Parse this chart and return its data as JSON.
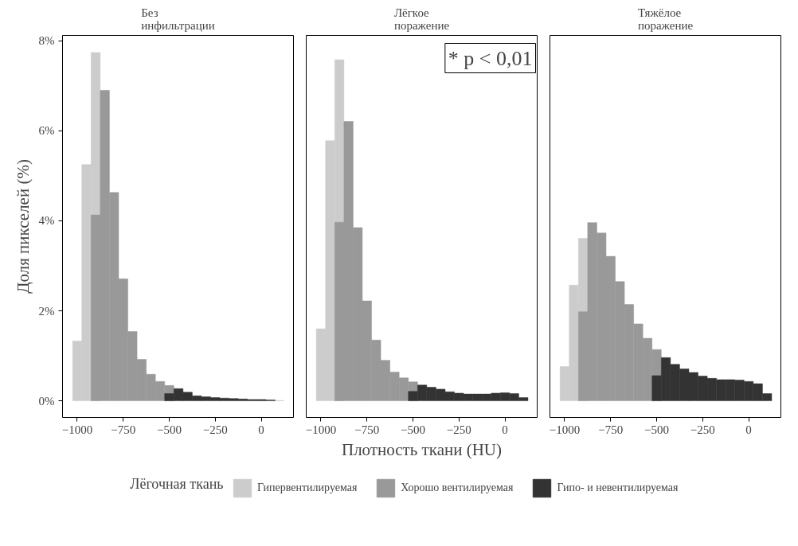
{
  "chart_data": [
    {
      "type": "histogram",
      "title": "Без\nинфильтрации",
      "ylabel": "Доля пикселей (%)",
      "bins": [
        -1025,
        -975,
        -925,
        -875,
        -825,
        -775,
        -725,
        -675,
        -625,
        -575,
        -525,
        -475,
        -425,
        -375,
        -325,
        -275,
        -225,
        -175,
        -125,
        -75,
        -25,
        25,
        75,
        125
      ],
      "xlim": [
        -1080,
        175
      ],
      "ylim": [
        -0.37,
        8.12
      ],
      "xticks": [
        -1000,
        -750,
        -500,
        -250,
        0
      ],
      "yticks": [
        {
          "value": 0,
          "label": "0%"
        },
        {
          "value": 2,
          "label": "2%"
        },
        {
          "value": 4,
          "label": "4%"
        },
        {
          "value": 6,
          "label": "6%"
        },
        {
          "value": 8,
          "label": "8%"
        }
      ],
      "series": [
        {
          "color": "#cccccc",
          "values": [
            1.33,
            5.25,
            7.74,
            null,
            null,
            null,
            null,
            null,
            null,
            null,
            null,
            null,
            null,
            null,
            null,
            null,
            null,
            null,
            null,
            null,
            null,
            null,
            0.01
          ]
        },
        {
          "color": "#999999",
          "values": [
            null,
            null,
            4.13,
            6.9,
            4.63,
            2.71,
            1.54,
            0.92,
            0.59,
            0.43,
            0.34,
            null,
            null,
            null,
            null,
            null,
            null,
            null,
            null,
            null,
            null,
            null,
            null
          ]
        },
        {
          "color": "#333333",
          "values": [
            null,
            null,
            null,
            null,
            null,
            null,
            null,
            null,
            null,
            null,
            0.16,
            0.27,
            0.19,
            0.11,
            0.09,
            0.07,
            0.06,
            0.05,
            0.04,
            0.03,
            0.03,
            0.02,
            null
          ]
        }
      ]
    },
    {
      "type": "histogram",
      "title": "Лёгкое\nпоражение",
      "xlabel": "Плотность ткани (HU)",
      "tick_labels": "x",
      "legend": "bottom",
      "legend_title": "Лёгочная ткань",
      "annotations": [
        "* p < 0,01"
      ],
      "bins": [
        -1025,
        -975,
        -925,
        -875,
        -825,
        -775,
        -725,
        -675,
        -625,
        -575,
        -525,
        -475,
        -425,
        -375,
        -325,
        -275,
        -225,
        -175,
        -125,
        -75,
        -25,
        25,
        75,
        125
      ],
      "xlim": [
        -1080,
        175
      ],
      "ylim": [
        -0.37,
        8.12
      ],
      "xticks": [
        -1000,
        -750,
        -500,
        -250,
        0
      ],
      "series": [
        {
          "name": "Гипервентилируемая",
          "color": "#cccccc",
          "values": [
            1.6,
            5.78,
            7.58,
            null,
            null,
            null,
            null,
            null,
            null,
            null,
            null,
            null,
            null,
            null,
            null,
            null,
            null,
            null,
            null,
            null,
            null,
            null,
            null
          ]
        },
        {
          "name": "Хорошо вентилируемая",
          "color": "#999999",
          "values": [
            null,
            null,
            3.97,
            6.21,
            3.85,
            2.22,
            1.35,
            0.9,
            0.64,
            0.51,
            0.42,
            null,
            null,
            null,
            null,
            null,
            null,
            null,
            null,
            null,
            null,
            null,
            null
          ]
        },
        {
          "name": "Гипо- и невентилируемая",
          "color": "#333333",
          "values": [
            null,
            null,
            null,
            null,
            null,
            null,
            null,
            null,
            null,
            null,
            0.21,
            0.35,
            0.3,
            0.26,
            0.2,
            0.17,
            0.15,
            0.15,
            0.15,
            0.17,
            0.18,
            0.16,
            0.07
          ]
        }
      ]
    },
    {
      "type": "histogram",
      "title": "Тяжёлое\nпоражение",
      "tick_labels": "x",
      "bins": [
        -1025,
        -975,
        -925,
        -875,
        -825,
        -775,
        -725,
        -675,
        -625,
        -575,
        -525,
        -475,
        -425,
        -375,
        -325,
        -275,
        -225,
        -175,
        -125,
        -75,
        -25,
        25,
        75,
        125
      ],
      "xlim": [
        -1080,
        175
      ],
      "ylim": [
        -0.37,
        8.12
      ],
      "xticks": [
        -1000,
        -750,
        -500,
        -250,
        0
      ],
      "series": [
        {
          "color": "#cccccc",
          "values": [
            0.76,
            2.57,
            3.61,
            null,
            null,
            null,
            null,
            null,
            null,
            null,
            null,
            null,
            null,
            null,
            null,
            null,
            null,
            null,
            null,
            null,
            null,
            null,
            null
          ]
        },
        {
          "color": "#999999",
          "values": [
            null,
            null,
            1.98,
            3.96,
            3.73,
            3.21,
            2.65,
            2.14,
            1.71,
            1.39,
            1.14,
            null,
            null,
            null,
            null,
            null,
            null,
            null,
            null,
            null,
            null,
            null,
            null
          ]
        },
        {
          "color": "#333333",
          "values": [
            null,
            null,
            null,
            null,
            null,
            null,
            null,
            null,
            null,
            null,
            0.56,
            0.96,
            0.81,
            0.71,
            0.63,
            0.55,
            0.5,
            0.47,
            0.47,
            0.46,
            0.43,
            0.38,
            0.16
          ]
        }
      ]
    }
  ]
}
